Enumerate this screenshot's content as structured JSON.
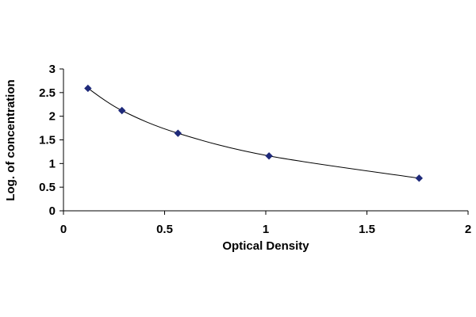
{
  "chart_data": {
    "type": "scatter",
    "title": "",
    "xlabel": "Optical Density",
    "ylabel": "Log. of concentration",
    "xlim": [
      0,
      2
    ],
    "ylim": [
      0,
      3
    ],
    "x_ticks": [
      "0",
      "0.5",
      "1",
      "1.5",
      "2"
    ],
    "y_ticks": [
      "0",
      "0.5",
      "1",
      "1.5",
      "2",
      "2.5",
      "3"
    ],
    "grid": false,
    "legend": "none",
    "trendline": "fitted curve",
    "series": [
      {
        "x": [
          0.121,
          0.289,
          0.566,
          1.016,
          1.758
        ],
        "y": [
          2.59,
          2.12,
          1.64,
          1.16,
          0.69
        ],
        "color": "#1f2a7a"
      }
    ]
  }
}
